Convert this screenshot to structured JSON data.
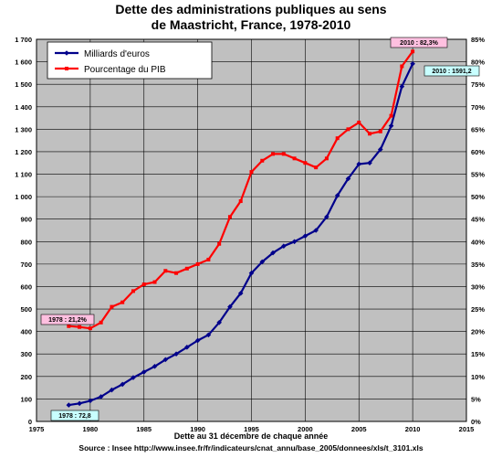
{
  "chart_data": {
    "type": "line",
    "title_line1": "Dette des administrations publiques au sens",
    "title_line2": "de Maastricht, France, 1978-2010",
    "x_ticks": [
      "1975",
      "1980",
      "1985",
      "1990",
      "1995",
      "2000",
      "2005",
      "2010",
      "2015"
    ],
    "xlim": [
      1975,
      2015
    ],
    "y_left_ticks": [
      "0",
      "100",
      "200",
      "300",
      "400",
      "500",
      "600",
      "700",
      "800",
      "900",
      "1 000",
      "1 100",
      "1 200",
      "1 300",
      "1 400",
      "1 500",
      "1 600",
      "1 700"
    ],
    "y_left_lim": [
      0,
      1700
    ],
    "y_right_ticks": [
      "0%",
      "5%",
      "10%",
      "15%",
      "20%",
      "25%",
      "30%",
      "35%",
      "40%",
      "45%",
      "50%",
      "55%",
      "60%",
      "65%",
      "70%",
      "75%",
      "80%",
      "85%"
    ],
    "y_right_lim": [
      0,
      85
    ],
    "grid": true,
    "legend_position": "top-left",
    "series": [
      {
        "name": "Milliards d'euros",
        "color": "#00008b",
        "axis": "left",
        "x": [
          1978,
          1979,
          1980,
          1981,
          1982,
          1983,
          1984,
          1985,
          1986,
          1987,
          1988,
          1989,
          1990,
          1991,
          1992,
          1993,
          1994,
          1995,
          1996,
          1997,
          1998,
          1999,
          2000,
          2001,
          2002,
          2003,
          2004,
          2005,
          2006,
          2007,
          2008,
          2009,
          2010
        ],
        "values": [
          72.8,
          80,
          92,
          110,
          140,
          165,
          195,
          220,
          245,
          275,
          300,
          330,
          360,
          385,
          440,
          510,
          570,
          660,
          710,
          750,
          780,
          800,
          825,
          850,
          910,
          1005,
          1080,
          1145,
          1150,
          1210,
          1315,
          1490,
          1591.2
        ]
      },
      {
        "name": "Pourcentage du PIB",
        "color": "#ff0000",
        "axis": "right",
        "x": [
          1978,
          1979,
          1980,
          1981,
          1982,
          1983,
          1984,
          1985,
          1986,
          1987,
          1988,
          1989,
          1990,
          1991,
          1992,
          1993,
          1994,
          1995,
          1996,
          1997,
          1998,
          1999,
          2000,
          2001,
          2002,
          2003,
          2004,
          2005,
          2006,
          2007,
          2008,
          2009,
          2010
        ],
        "values": [
          21.2,
          21,
          20.7,
          22,
          25.5,
          26.5,
          29,
          30.5,
          31,
          33.5,
          33,
          34,
          35,
          36,
          39.5,
          45.5,
          49,
          55.5,
          58,
          59.5,
          59.5,
          58.5,
          57.5,
          56.5,
          58.5,
          63,
          65,
          66.5,
          64,
          64.5,
          68,
          79,
          82.3
        ]
      }
    ],
    "annotations": {
      "pct_1978": "1978 : 21,2%",
      "pct_2010": "2010 : 82,3%",
      "eur_1978": "1978 : 72,8",
      "eur_2010": "2010 : 1591,2"
    },
    "xlabel": "Dette au 31 décembre de chaque année",
    "source": "Source : Insee http://www.insee.fr/fr/indicateurs/cnat_annu/base_2005/donnees/xls/t_3101.xls",
    "colors": {
      "plot_bg": "#c0c0c0",
      "annotation_pink": "#ffc0e0",
      "annotation_cyan": "#c8ffff"
    }
  }
}
